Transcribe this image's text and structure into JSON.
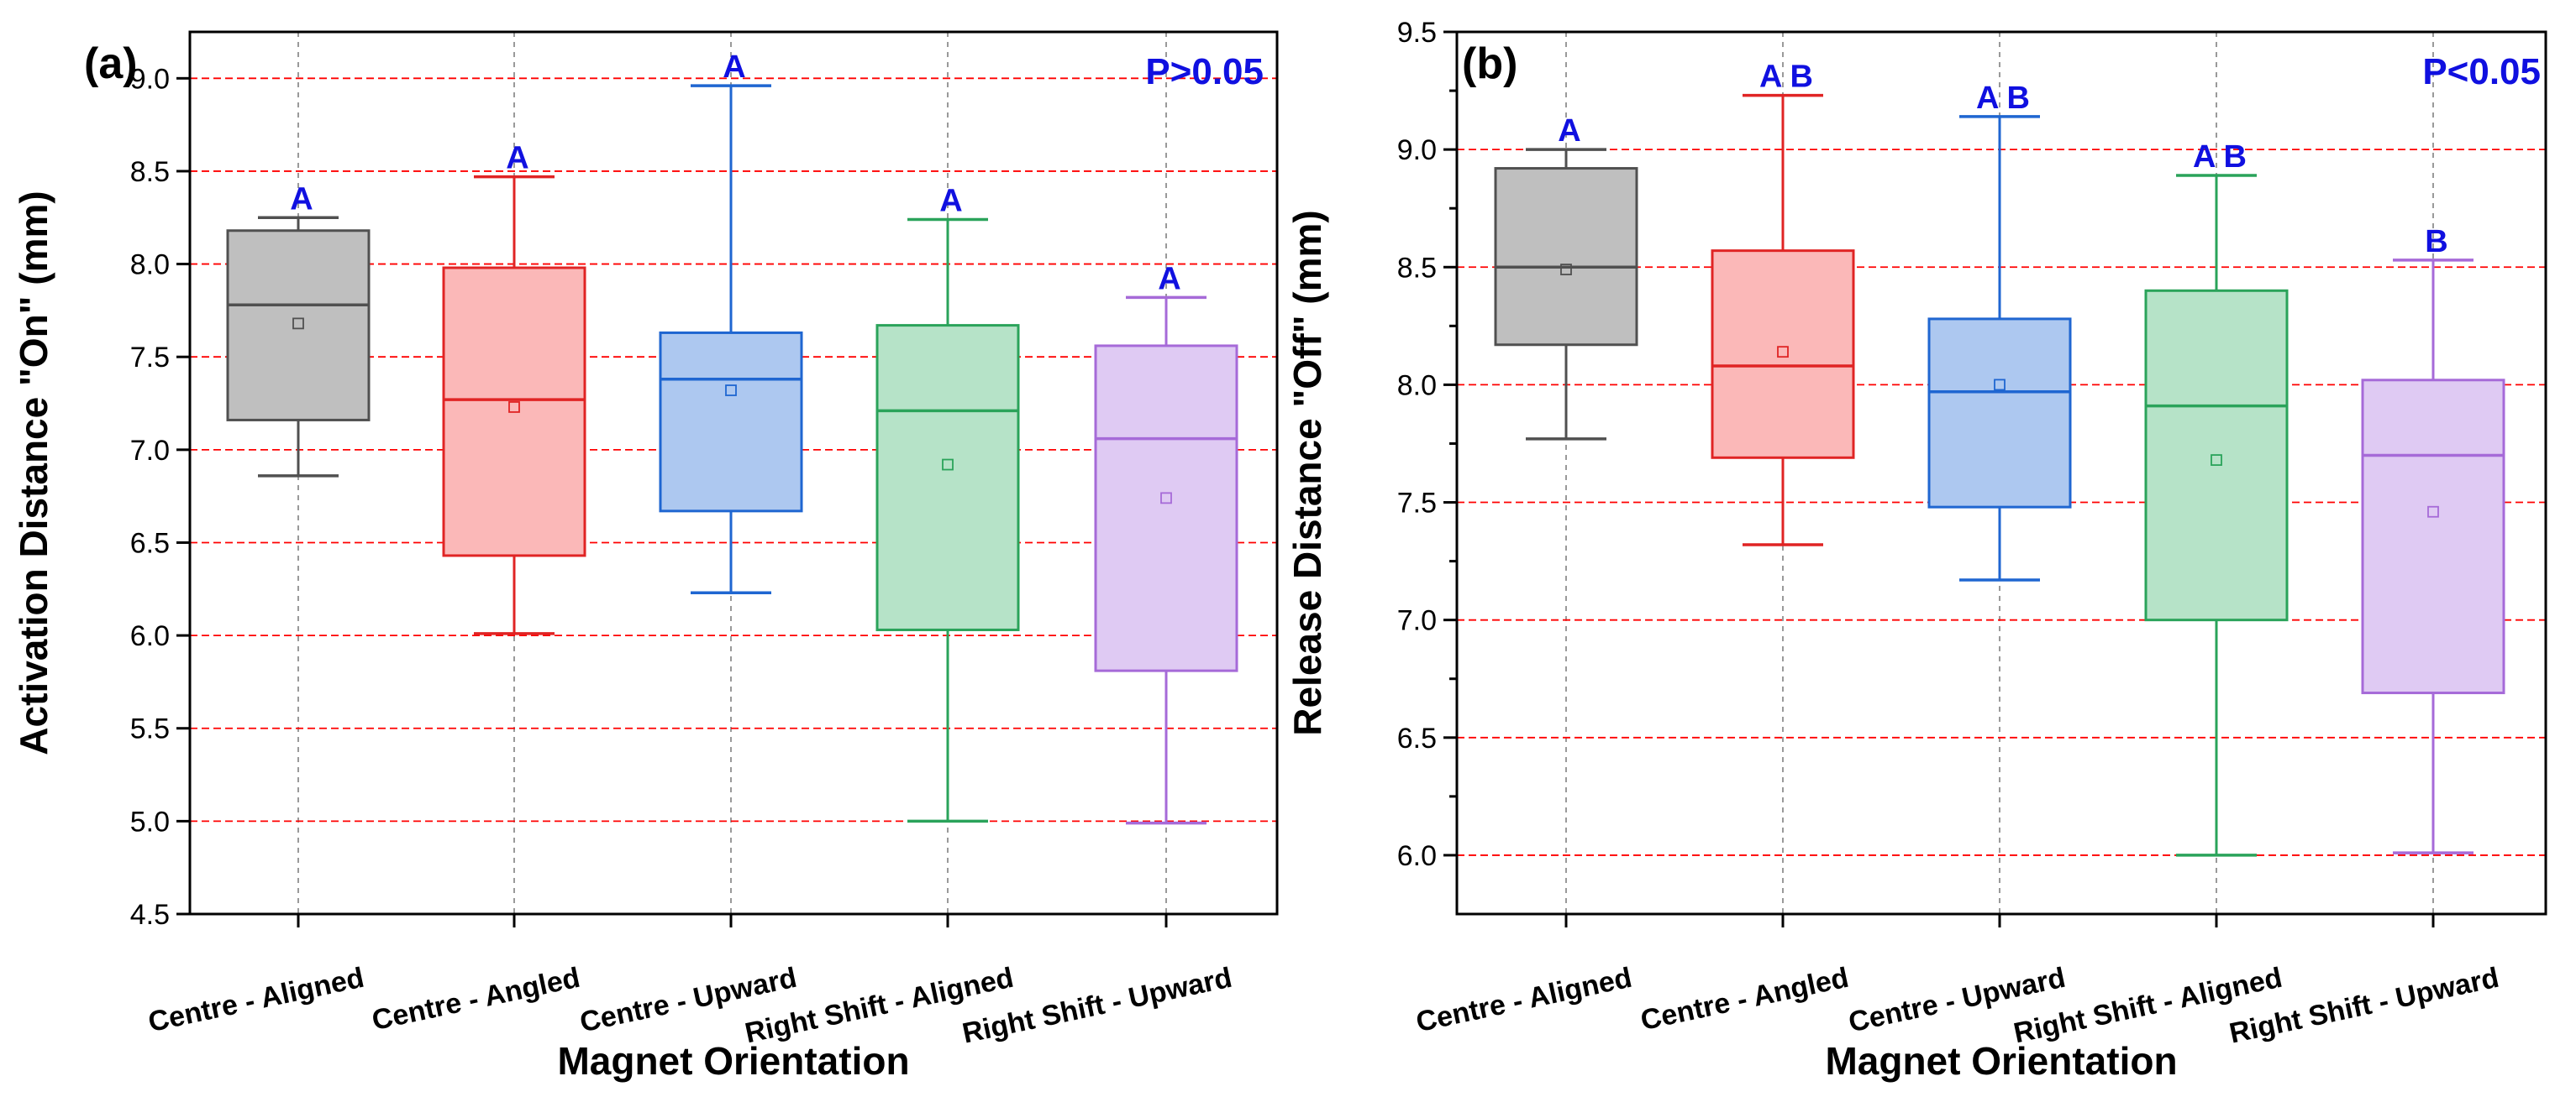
{
  "chart_data": [
    {
      "type": "box",
      "panel_label": "(a)",
      "annotation": "P>0.05",
      "xlabel": "Magnet Orientation",
      "ylabel": "Activation Distance \"On\" (mm)",
      "ylim": [
        4.5,
        9.25
      ],
      "yticks": [
        4.5,
        5.0,
        5.5,
        6.0,
        6.5,
        7.0,
        7.5,
        8.0,
        8.5,
        9.0
      ],
      "ytick_labels": [
        "4.5",
        "5.0",
        "5.5",
        "6.0",
        "6.5",
        "7.0",
        "7.5",
        "8.0",
        "8.5",
        "9.0"
      ],
      "red_gridlines": [
        5.0,
        5.5,
        6.0,
        6.5,
        7.0,
        7.5,
        8.0,
        8.5,
        9.0
      ],
      "categories": [
        "Centre - Aligned",
        "Centre - Angled",
        "Centre - Upward",
        "Right Shift - Aligned",
        "Right Shift - Upward"
      ],
      "boxes": [
        {
          "min": 6.86,
          "q1": 7.16,
          "median": 7.78,
          "q3": 8.18,
          "max": 8.25,
          "mean": 7.68,
          "group": "A"
        },
        {
          "min": 6.01,
          "q1": 6.43,
          "median": 7.27,
          "q3": 7.98,
          "max": 8.47,
          "mean": 7.23,
          "group": "A"
        },
        {
          "min": 6.23,
          "q1": 6.67,
          "median": 7.38,
          "q3": 7.63,
          "max": 8.96,
          "mean": 7.32,
          "group": "A"
        },
        {
          "min": 5.0,
          "q1": 6.03,
          "median": 7.21,
          "q3": 7.67,
          "max": 8.24,
          "mean": 6.92,
          "group": "A"
        },
        {
          "min": 4.99,
          "q1": 5.81,
          "median": 7.06,
          "q3": 7.56,
          "max": 7.82,
          "mean": 6.74,
          "group": "A"
        }
      ]
    },
    {
      "type": "box",
      "panel_label": "(b)",
      "annotation": "P<0.05",
      "xlabel": "Magnet Orientation",
      "ylabel": "Release Distance \"Off\" (mm)",
      "ylim": [
        5.75,
        9.5
      ],
      "yticks": [
        6.0,
        6.5,
        7.0,
        7.5,
        8.0,
        8.5,
        9.0,
        9.5
      ],
      "ytick_labels": [
        "6.0",
        "6.5",
        "7.0",
        "7.5",
        "8.0",
        "8.5",
        "9.0",
        "9.5"
      ],
      "minor_yticks": [
        6.25,
        6.75,
        7.25,
        7.75,
        8.25,
        8.75,
        9.25
      ],
      "red_gridlines": [
        6.0,
        6.5,
        7.0,
        7.5,
        8.0,
        8.5,
        9.0
      ],
      "categories": [
        "Centre - Aligned",
        "Centre - Angled",
        "Centre - Upward",
        "Right Shift - Aligned",
        "Right Shift - Upward"
      ],
      "boxes": [
        {
          "min": 7.77,
          "q1": 8.17,
          "median": 8.5,
          "q3": 8.92,
          "max": 9.0,
          "mean": 8.49,
          "group": "A"
        },
        {
          "min": 7.32,
          "q1": 7.69,
          "median": 8.08,
          "q3": 8.57,
          "max": 9.23,
          "mean": 8.14,
          "group": "A B"
        },
        {
          "min": 7.17,
          "q1": 7.48,
          "median": 7.97,
          "q3": 8.28,
          "max": 9.14,
          "mean": 8.0,
          "group": "A B"
        },
        {
          "min": 6.0,
          "q1": 7.0,
          "median": 7.91,
          "q3": 8.4,
          "max": 8.89,
          "mean": 7.68,
          "group": "A B"
        },
        {
          "min": 6.01,
          "q1": 6.69,
          "median": 7.7,
          "q3": 8.02,
          "max": 8.53,
          "mean": 7.46,
          "group": "B"
        }
      ]
    }
  ],
  "colors": {
    "boxes": [
      {
        "stroke": "#505050",
        "fill": "#bfbfbf"
      },
      {
        "stroke": "#e02424",
        "fill": "#fbb8b8"
      },
      {
        "stroke": "#1f66d1",
        "fill": "#adc8f0"
      },
      {
        "stroke": "#2aa35a",
        "fill": "#b6e3c8"
      },
      {
        "stroke": "#a66ad8",
        "fill": "#dfcaf3"
      }
    ],
    "annotation": "#1010e0",
    "gridline": "#ff0000"
  }
}
